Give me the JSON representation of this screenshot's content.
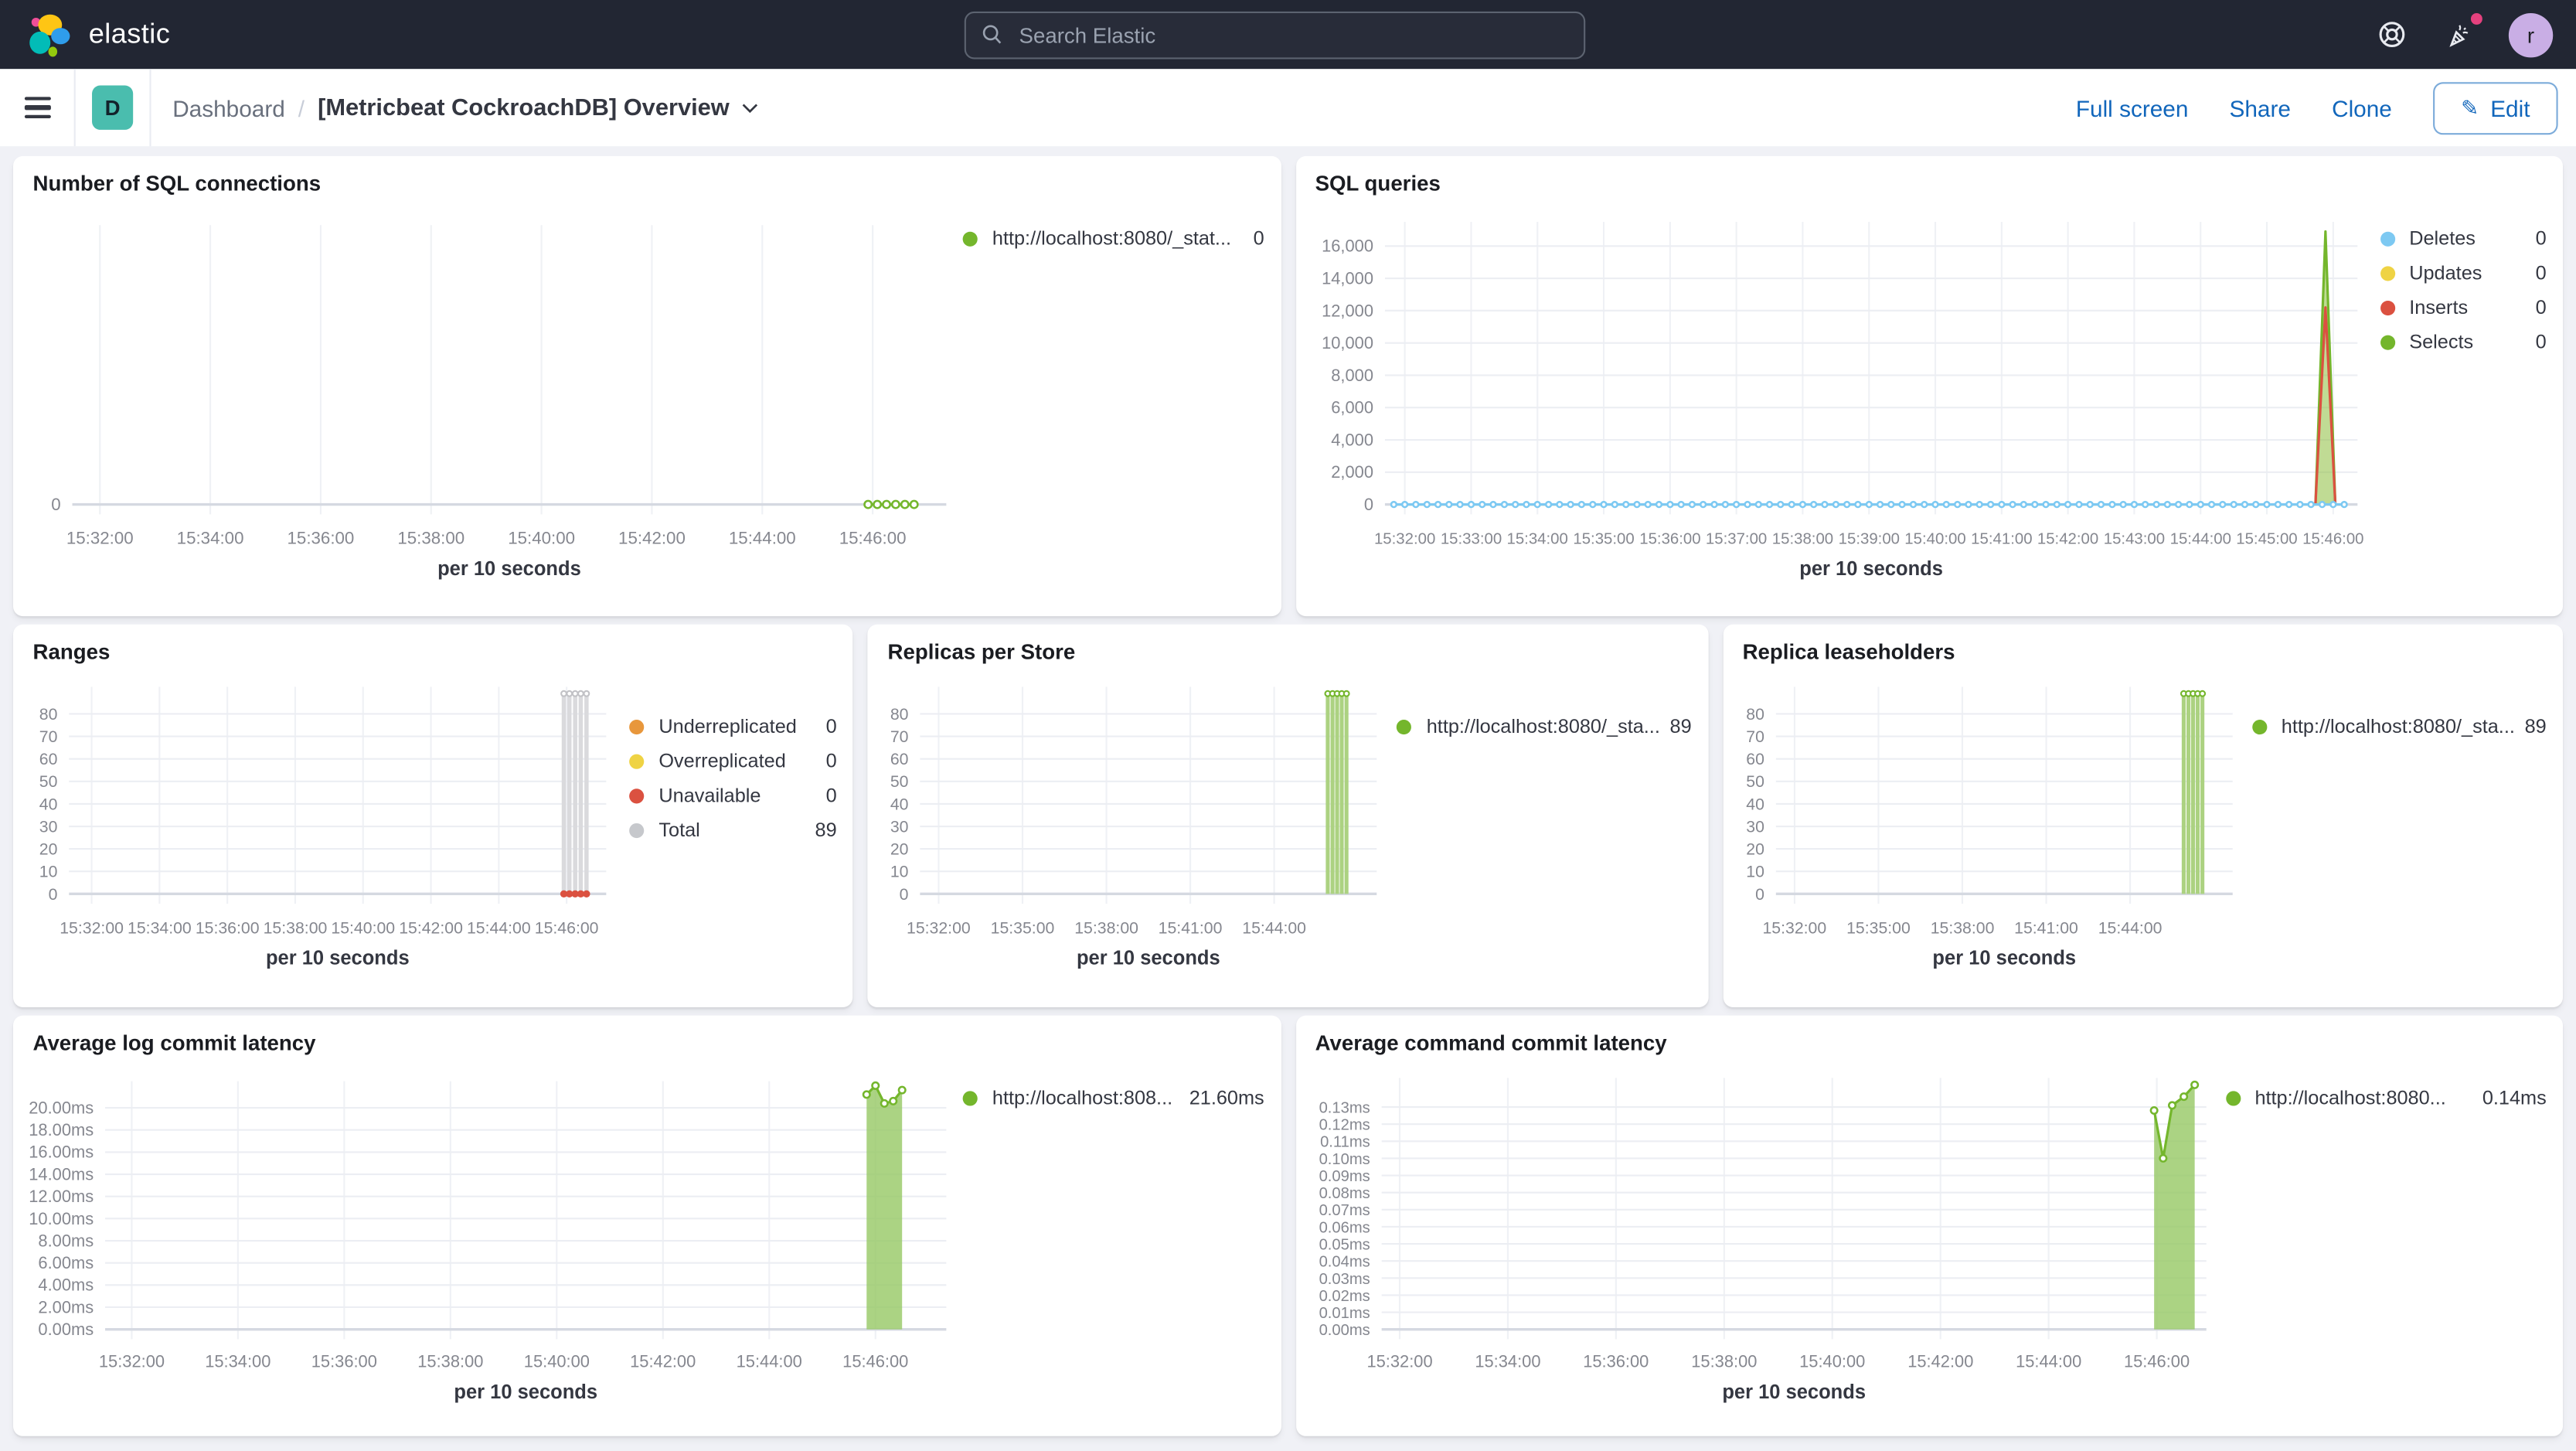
{
  "topnav": {
    "brand": "elastic",
    "search_placeholder": "Search Elastic",
    "avatar_initial": "r"
  },
  "toolbar": {
    "badge": "D",
    "breadcrumb_root": "Dashboard",
    "separator": "/",
    "title": "[Metricbeat CockroachDB] Overview",
    "actions": {
      "full_screen": "Full screen",
      "share": "Share",
      "clone": "Clone",
      "edit": "Edit"
    }
  },
  "colors": {
    "header_bg": "#222633",
    "page_bg": "#F0F1F6",
    "link_blue": "#1166BB",
    "series_green": "#74B62C",
    "series_blue": "#7DC9F2",
    "series_yellow": "#EFD344",
    "series_red": "#DB5140",
    "series_orange": "#E8973C",
    "series_gray": "#C6C8CC",
    "badge_teal": "#4ABDAE",
    "notification_pink": "#E5417E",
    "avatar_purple": "#C9AEE5"
  },
  "chart_data": [
    {
      "id": "sql-connections",
      "type": "line",
      "title": "Number of SQL connections",
      "xaxis_title": "per 10 seconds",
      "xmin": "15:31:30",
      "xmax": "15:47:20",
      "x_ticks": [
        "15:32:00",
        "15:34:00",
        "15:36:00",
        "15:38:00",
        "15:40:00",
        "15:42:00",
        "15:44:00",
        "15:46:00"
      ],
      "y_ticks": [
        {
          "v": 0,
          "label": "0"
        }
      ],
      "ymax": 1,
      "series": [
        {
          "name": "http://localhost:8080/_stat...",
          "type": "line",
          "color": "#74B62C",
          "marker": true,
          "marker_r": 2.2,
          "points": [
            [
              "15:45:55",
              0
            ],
            [
              "15:46:05",
              0
            ],
            [
              "15:46:15",
              0
            ],
            [
              "15:46:25",
              0
            ],
            [
              "15:46:35",
              0
            ],
            [
              "15:46:45",
              0
            ]
          ]
        }
      ],
      "legend": [
        {
          "label": "http://localhost:8080/_stat...",
          "value": "0",
          "color": "#74B62C"
        }
      ]
    },
    {
      "id": "sql-queries",
      "type": "line",
      "title": "SQL queries",
      "xaxis_title": "per 10 seconds",
      "xmin": "15:31:42",
      "xmax": "15:46:22",
      "x_ticks": [
        "15:32:00",
        "15:33:00",
        "15:34:00",
        "15:35:00",
        "15:36:00",
        "15:37:00",
        "15:38:00",
        "15:39:00",
        "15:40:00",
        "15:41:00",
        "15:42:00",
        "15:43:00",
        "15:44:00",
        "15:45:00",
        "15:46:00"
      ],
      "y_ticks": [
        {
          "v": 0,
          "label": "0"
        },
        {
          "v": 2000,
          "label": "2,000"
        },
        {
          "v": 4000,
          "label": "4,000"
        },
        {
          "v": 6000,
          "label": "6,000"
        },
        {
          "v": 8000,
          "label": "8,000"
        },
        {
          "v": 10000,
          "label": "10,000"
        },
        {
          "v": 12000,
          "label": "12,000"
        },
        {
          "v": 14000,
          "label": "14,000"
        },
        {
          "v": 16000,
          "label": "16,000"
        }
      ],
      "ymax": 17500,
      "series": [
        {
          "name": "Selects",
          "type": "area",
          "color": "#74B62C",
          "fill": "rgba(140,190,60,0.55)",
          "points": [
            [
              "15:45:44",
              0
            ],
            [
              "15:45:53",
              16900
            ],
            [
              "15:46:02",
              0
            ]
          ]
        },
        {
          "name": "Inserts",
          "type": "line",
          "color": "#DB5140",
          "points": [
            [
              "15:45:44",
              0
            ],
            [
              "15:45:53",
              12200
            ],
            [
              "15:46:02",
              0
            ]
          ]
        },
        {
          "name": "Updates",
          "type": "line",
          "color": "#EFD344",
          "flat": {
            "from": "15:31:50",
            "to": "15:46:10",
            "step_s": 10,
            "value": 0
          }
        },
        {
          "name": "Deletes",
          "type": "line",
          "color": "#7DC9F2",
          "marker": true,
          "marker_r": 1.6,
          "flat": {
            "from": "15:31:50",
            "to": "15:46:10",
            "step_s": 10,
            "value": 0
          }
        }
      ],
      "legend": [
        {
          "label": "Deletes",
          "value": "0",
          "color": "#7DC9F2"
        },
        {
          "label": "Updates",
          "value": "0",
          "color": "#EFD344"
        },
        {
          "label": "Inserts",
          "value": "0",
          "color": "#DB5140"
        },
        {
          "label": "Selects",
          "value": "0",
          "color": "#74B62C"
        }
      ]
    },
    {
      "id": "ranges",
      "type": "bar",
      "title": "Ranges",
      "xaxis_title": "per 10 seconds",
      "xmin": "15:31:20",
      "xmax": "15:47:10",
      "x_ticks": [
        "15:32:00",
        "15:34:00",
        "15:36:00",
        "15:38:00",
        "15:40:00",
        "15:42:00",
        "15:44:00",
        "15:46:00"
      ],
      "y_ticks": [
        {
          "v": 0,
          "label": "0"
        },
        {
          "v": 10,
          "label": "10"
        },
        {
          "v": 20,
          "label": "20"
        },
        {
          "v": 30,
          "label": "30"
        },
        {
          "v": 40,
          "label": "40"
        },
        {
          "v": 50,
          "label": "50"
        },
        {
          "v": 60,
          "label": "60"
        },
        {
          "v": 70,
          "label": "70"
        },
        {
          "v": 80,
          "label": "80"
        }
      ],
      "ymax": 92,
      "series": [
        {
          "name": "Total",
          "type": "bars",
          "color": "#DADadd",
          "marker_color": "#C2C2C6",
          "points": [
            [
              "15:45:55",
              89
            ],
            [
              "15:46:05",
              89
            ],
            [
              "15:46:15",
              89
            ],
            [
              "15:46:25",
              89
            ],
            [
              "15:46:35",
              89
            ]
          ]
        },
        {
          "name": "Unavailable",
          "type": "dots",
          "color": "#DB5140",
          "points": [
            [
              "15:45:55",
              0
            ],
            [
              "15:46:05",
              0
            ],
            [
              "15:46:15",
              0
            ],
            [
              "15:46:25",
              0
            ],
            [
              "15:46:35",
              0
            ]
          ]
        }
      ],
      "legend": [
        {
          "label": "Underreplicated",
          "value": "0",
          "color": "#E8973C"
        },
        {
          "label": "Overreplicated",
          "value": "0",
          "color": "#EFD344"
        },
        {
          "label": "Unavailable",
          "value": "0",
          "color": "#DB5140"
        },
        {
          "label": "Total",
          "value": "89",
          "color": "#C6C8CC"
        }
      ]
    },
    {
      "id": "replicas-per-store",
      "type": "bar",
      "title": "Replicas per Store",
      "xaxis_title": "per 10 seconds",
      "xmin": "15:31:20",
      "xmax": "15:47:40",
      "x_ticks": [
        "15:32:00",
        "15:35:00",
        "15:38:00",
        "15:41:00",
        "15:44:00"
      ],
      "y_ticks": [
        {
          "v": 0,
          "label": "0"
        },
        {
          "v": 10,
          "label": "10"
        },
        {
          "v": 20,
          "label": "20"
        },
        {
          "v": 30,
          "label": "30"
        },
        {
          "v": 40,
          "label": "40"
        },
        {
          "v": 50,
          "label": "50"
        },
        {
          "v": 60,
          "label": "60"
        },
        {
          "v": 70,
          "label": "70"
        },
        {
          "v": 80,
          "label": "80"
        }
      ],
      "ymax": 92,
      "series": [
        {
          "name": "http://localhost:8080/_sta...",
          "type": "bars",
          "color": "#ACD281",
          "marker_color": "#74B62C",
          "points": [
            [
              "15:45:55",
              89
            ],
            [
              "15:46:05",
              89
            ],
            [
              "15:46:15",
              89
            ],
            [
              "15:46:25",
              89
            ],
            [
              "15:46:35",
              89
            ]
          ]
        }
      ],
      "legend": [
        {
          "label": "http://localhost:8080/_sta...",
          "value": "89",
          "color": "#74B62C"
        }
      ]
    },
    {
      "id": "replica-leaseholders",
      "type": "bar",
      "title": "Replica leaseholders",
      "xaxis_title": "per 10 seconds",
      "xmin": "15:31:20",
      "xmax": "15:47:40",
      "x_ticks": [
        "15:32:00",
        "15:35:00",
        "15:38:00",
        "15:41:00",
        "15:44:00"
      ],
      "y_ticks": [
        {
          "v": 0,
          "label": "0"
        },
        {
          "v": 10,
          "label": "10"
        },
        {
          "v": 20,
          "label": "20"
        },
        {
          "v": 30,
          "label": "30"
        },
        {
          "v": 40,
          "label": "40"
        },
        {
          "v": 50,
          "label": "50"
        },
        {
          "v": 60,
          "label": "60"
        },
        {
          "v": 70,
          "label": "70"
        },
        {
          "v": 80,
          "label": "80"
        }
      ],
      "ymax": 92,
      "series": [
        {
          "name": "http://localhost:8080/_sta...",
          "type": "bars",
          "color": "#ACD281",
          "marker_color": "#74B62C",
          "points": [
            [
              "15:45:55",
              89
            ],
            [
              "15:46:05",
              89
            ],
            [
              "15:46:15",
              89
            ],
            [
              "15:46:25",
              89
            ],
            [
              "15:46:35",
              89
            ]
          ]
        }
      ],
      "legend": [
        {
          "label": "http://localhost:8080/_sta...",
          "value": "89",
          "color": "#74B62C"
        }
      ]
    },
    {
      "id": "avg-log-commit-latency",
      "type": "area",
      "title": "Average log commit latency",
      "xaxis_title": "per 10 seconds",
      "xmin": "15:31:30",
      "xmax": "15:47:20",
      "x_ticks": [
        "15:32:00",
        "15:34:00",
        "15:36:00",
        "15:38:00",
        "15:40:00",
        "15:42:00",
        "15:44:00",
        "15:46:00"
      ],
      "y_ticks": [
        {
          "v": 0,
          "label": "0.00ms"
        },
        {
          "v": 2,
          "label": "2.00ms"
        },
        {
          "v": 4,
          "label": "4.00ms"
        },
        {
          "v": 6,
          "label": "6.00ms"
        },
        {
          "v": 8,
          "label": "8.00ms"
        },
        {
          "v": 10,
          "label": "10.00ms"
        },
        {
          "v": 12,
          "label": "12.00ms"
        },
        {
          "v": 14,
          "label": "14.00ms"
        },
        {
          "v": 16,
          "label": "16.00ms"
        },
        {
          "v": 18,
          "label": "18.00ms"
        },
        {
          "v": 20,
          "label": "20.00ms"
        }
      ],
      "ymax": 22.4,
      "series": [
        {
          "name": "http://localhost:808...",
          "type": "area",
          "color": "#74B62C",
          "fill": "rgba(150,200,100,0.8)",
          "marker": true,
          "marker_r": 2,
          "points": [
            [
              "15:45:50",
              21.2
            ],
            [
              "15:46:00",
              22.0
            ],
            [
              "15:46:10",
              20.4
            ],
            [
              "15:46:20",
              20.6
            ],
            [
              "15:46:30",
              21.6
            ]
          ]
        }
      ],
      "legend": [
        {
          "label": "http://localhost:808...",
          "value": "21.60ms",
          "color": "#74B62C"
        }
      ]
    },
    {
      "id": "avg-command-commit-latency",
      "type": "area",
      "title": "Average command commit latency",
      "xaxis_title": "per 10 seconds",
      "xmin": "15:31:40",
      "xmax": "15:46:55",
      "x_ticks": [
        "15:32:00",
        "15:34:00",
        "15:36:00",
        "15:38:00",
        "15:40:00",
        "15:42:00",
        "15:44:00",
        "15:46:00"
      ],
      "y_ticks": [
        {
          "v": 0,
          "label": "0.00ms"
        },
        {
          "v": 0.01,
          "label": "0.01ms"
        },
        {
          "v": 0.02,
          "label": "0.02ms"
        },
        {
          "v": 0.03,
          "label": "0.03ms"
        },
        {
          "v": 0.04,
          "label": "0.04ms"
        },
        {
          "v": 0.05,
          "label": "0.05ms"
        },
        {
          "v": 0.06,
          "label": "0.06ms"
        },
        {
          "v": 0.07,
          "label": "0.07ms"
        },
        {
          "v": 0.08,
          "label": "0.08ms"
        },
        {
          "v": 0.09,
          "label": "0.09ms"
        },
        {
          "v": 0.1,
          "label": "0.10ms"
        },
        {
          "v": 0.11,
          "label": "0.11ms"
        },
        {
          "v": 0.12,
          "label": "0.12ms"
        },
        {
          "v": 0.13,
          "label": "0.13ms"
        }
      ],
      "ymax": 0.147,
      "series": [
        {
          "name": "http://localhost:8080...",
          "type": "area",
          "color": "#74B62C",
          "fill": "rgba(150,200,100,0.8)",
          "marker": true,
          "marker_r": 2,
          "points": [
            [
              "15:45:57",
              0.128
            ],
            [
              "15:46:07",
              0.1
            ],
            [
              "15:46:17",
              0.131
            ],
            [
              "15:46:30",
              0.136
            ],
            [
              "15:46:42",
              0.143
            ]
          ]
        }
      ],
      "legend": [
        {
          "label": "http://localhost:8080...",
          "value": "0.14ms",
          "color": "#74B62C"
        }
      ]
    }
  ]
}
